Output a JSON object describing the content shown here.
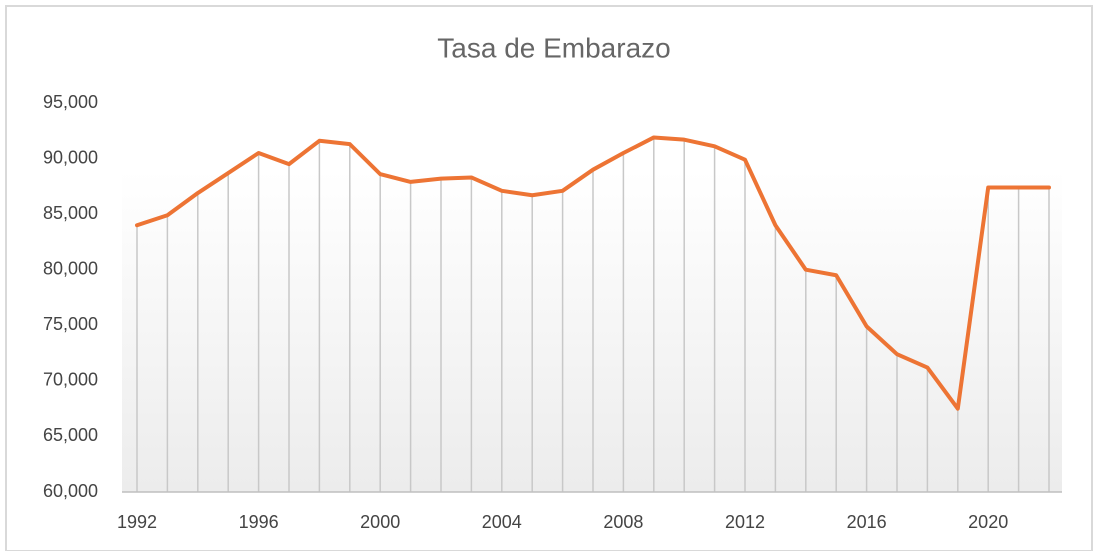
{
  "chart_data": {
    "type": "line",
    "title": "Tasa de Embarazo",
    "x": [
      1992,
      1993,
      1994,
      1995,
      1996,
      1997,
      1998,
      1999,
      2000,
      2001,
      2002,
      2003,
      2004,
      2005,
      2006,
      2007,
      2008,
      2009,
      2010,
      2011,
      2012,
      2013,
      2014,
      2015,
      2016,
      2017,
      2018,
      2019,
      2020,
      2021,
      2022
    ],
    "series": [
      {
        "name": "Tasa de Embarazo",
        "color": "#ed7434",
        "values": [
          84000,
          84900,
          86900,
          88700,
          90500,
          89500,
          91600,
          91300,
          88600,
          87900,
          88200,
          88300,
          87100,
          86700,
          87100,
          89000,
          90500,
          91900,
          91700,
          91100,
          89900,
          84000,
          80000,
          79500,
          74900,
          72400,
          71200,
          67500,
          87400,
          87400,
          87400
        ]
      }
    ],
    "xlim": [
      1992,
      2022
    ],
    "xticks": [
      1992,
      1996,
      2000,
      2004,
      2008,
      2012,
      2016,
      2020
    ],
    "ylim": [
      60000,
      95000
    ],
    "yticks": [
      {
        "value": 60000,
        "label": "60,000"
      },
      {
        "value": 65000,
        "label": "65,000"
      },
      {
        "value": 70000,
        "label": "70,000"
      },
      {
        "value": 75000,
        "label": "75,000"
      },
      {
        "value": 80000,
        "label": "80,000"
      },
      {
        "value": 85000,
        "label": "85,000"
      },
      {
        "value": 90000,
        "label": "90,000"
      },
      {
        "value": 95000,
        "label": "95,000"
      }
    ],
    "drop_lines": true
  }
}
